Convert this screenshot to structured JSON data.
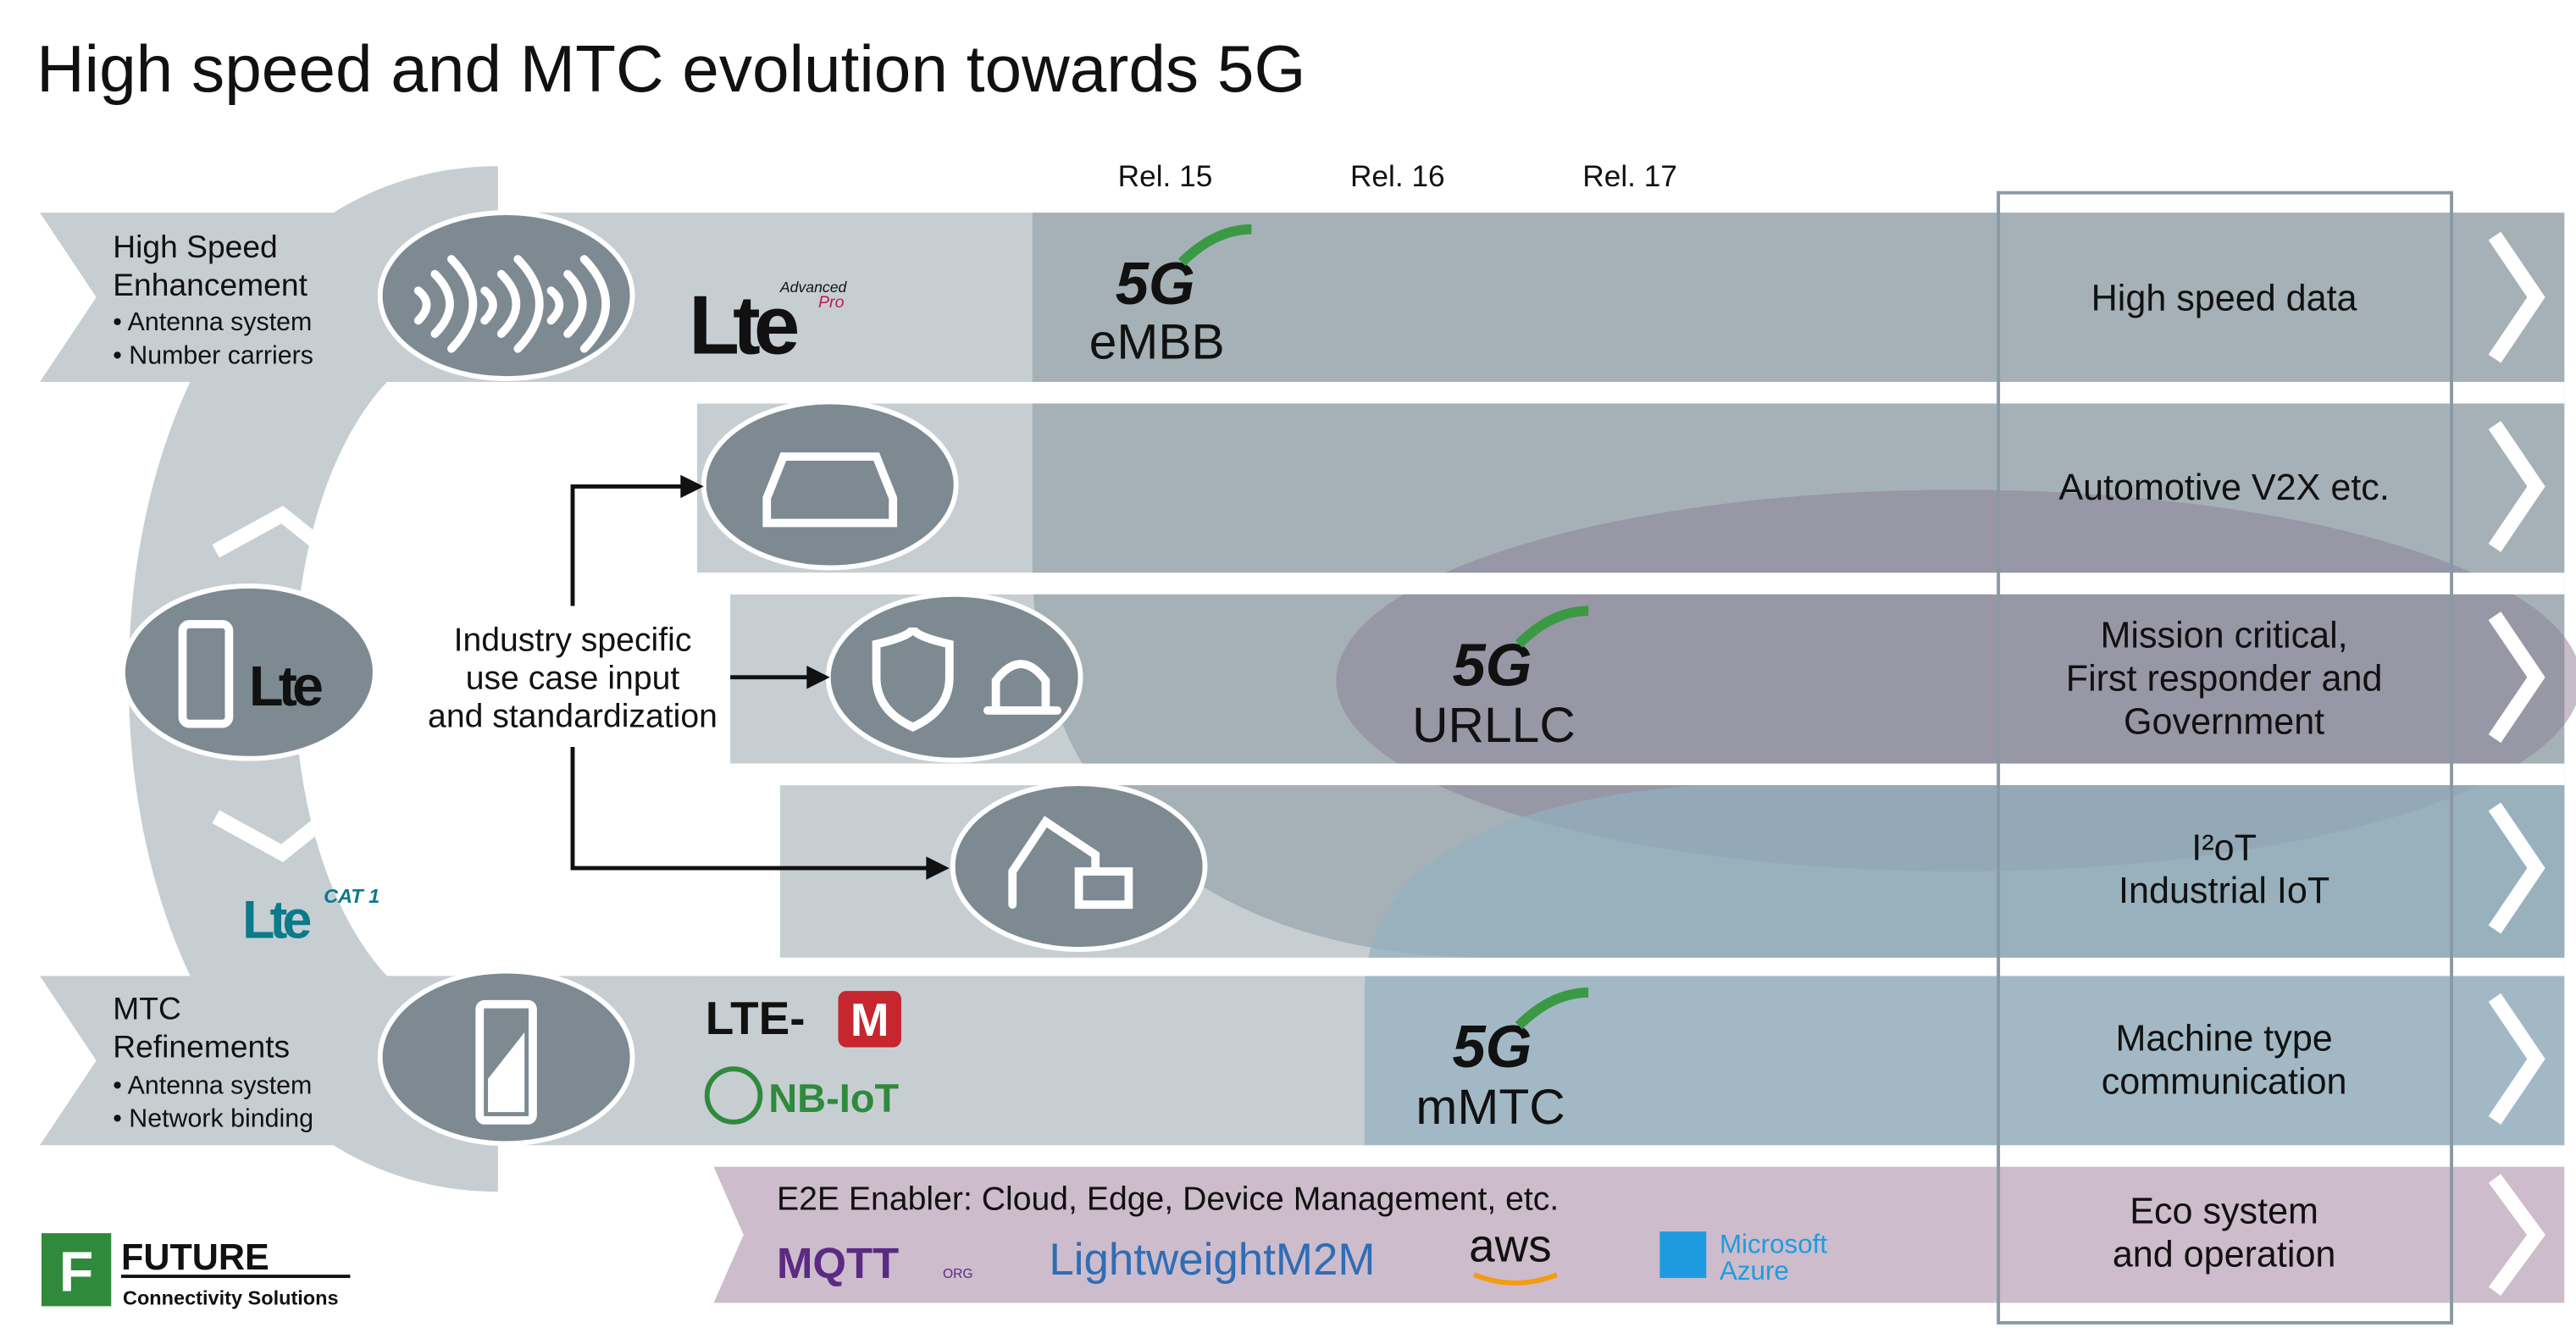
{
  "header": {
    "title": "High speed and MTC evolution towards 5G"
  },
  "releases": [
    "Rel. 15",
    "Rel. 16",
    "Rel. 17"
  ],
  "high_speed": {
    "title": [
      "High Speed",
      "Enhancement"
    ],
    "bullets": [
      "• Antenna system",
      "• Number carriers"
    ]
  },
  "mtc": {
    "title": [
      "MTC",
      "Refinements"
    ],
    "bullets": [
      "• Antenna system",
      "• Network binding"
    ]
  },
  "industry": {
    "lines": [
      "Industry specific",
      "use case input",
      "and standardization"
    ]
  },
  "logos": {
    "lte_advanced": {
      "name": "Lte",
      "advanced": "Advanced",
      "pro": "Pro"
    },
    "lte_phone": "Lte",
    "lte_cat1": {
      "name": "Lte",
      "cat": "CAT 1"
    },
    "lte_m": [
      "LTE-",
      "M"
    ],
    "nb_iot": "NB-IoT"
  },
  "fiveg": [
    {
      "logo": "5G",
      "label": "eMBB"
    },
    {
      "logo": "5G",
      "label": "URLLC"
    },
    {
      "logo": "5G",
      "label": "mMTC"
    }
  ],
  "use_cases": [
    {
      "lines": [
        "High speed data"
      ]
    },
    {
      "lines": [
        "Automotive V2X etc."
      ]
    },
    {
      "lines": [
        "Mission critical,",
        "First responder and",
        "Government"
      ]
    },
    {
      "lines": [
        "I²oT",
        "Industrial IoT"
      ]
    },
    {
      "lines": [
        "Machine type",
        "communication"
      ]
    },
    {
      "lines": [
        "Eco system",
        "and operation"
      ]
    }
  ],
  "e2e": {
    "title": "E2E Enabler: Cloud, Edge, Device Management, etc.",
    "logos": {
      "mqtt": "MQTT",
      "mqtt_org": "ORG",
      "lwm2m": "LightweightM2M",
      "aws": "aws",
      "azure": [
        "Microsoft",
        "Azure"
      ]
    }
  },
  "footer": {
    "brand": "FUTURE",
    "tagline": "Connectivity Solutions"
  }
}
